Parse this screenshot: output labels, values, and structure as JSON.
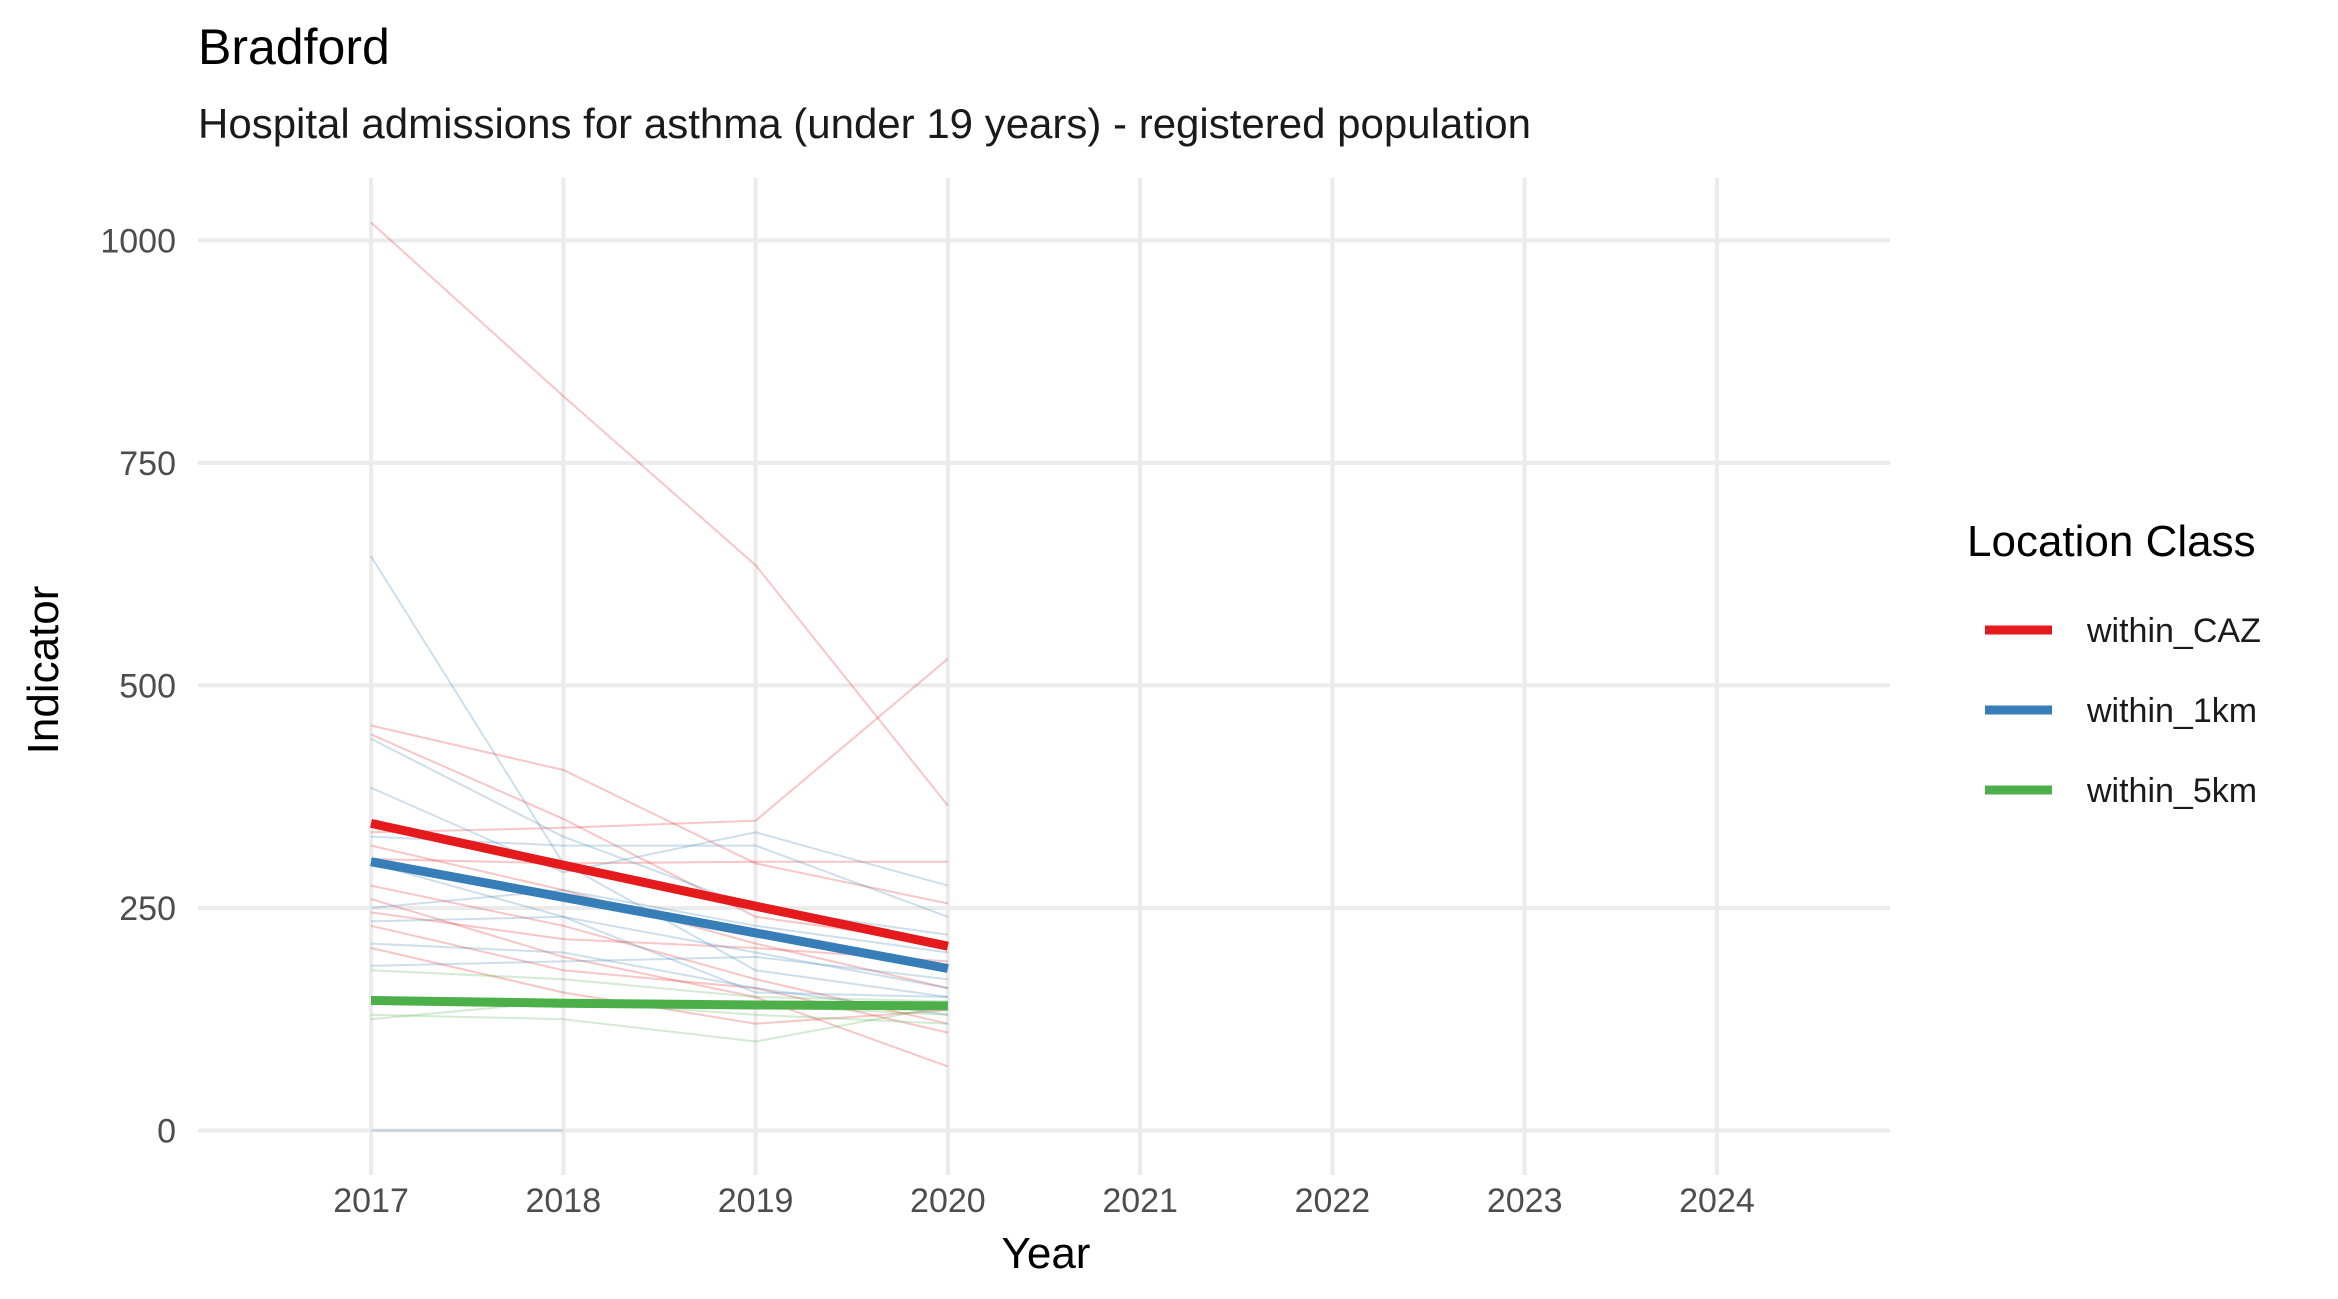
{
  "chart_data": {
    "type": "line",
    "title": "Bradford",
    "subtitle": "Hospital admissions for asthma (under 19 years) - registered  population",
    "xlabel": "Year",
    "ylabel": "Indicator",
    "x_ticks": [
      "2017",
      "2018",
      "2019",
      "2020",
      "2021",
      "2022",
      "2023",
      "2024"
    ],
    "y_ticks": [
      "0",
      "250",
      "500",
      "750",
      "1000"
    ],
    "xlim": [
      2016.1,
      2024.9
    ],
    "ylim": [
      -50,
      1070
    ],
    "grid": true,
    "legend": {
      "title": "Location Class",
      "position": "right"
    },
    "series": [
      {
        "name": "within_CAZ",
        "color": "#e41a1c",
        "x": [
          2017,
          2018,
          2019,
          2020
        ],
        "y": [
          345,
          298,
          252,
          207
        ]
      },
      {
        "name": "within_1km",
        "color": "#377eb8",
        "x": [
          2017,
          2018,
          2019,
          2020
        ],
        "y": [
          302,
          262,
          222,
          182
        ]
      },
      {
        "name": "within_5km",
        "color": "#4daf4a",
        "x": [
          2017,
          2018,
          2019,
          2020
        ],
        "y": [
          146,
          143,
          141,
          140
        ]
      }
    ],
    "background_lines": [
      {
        "group": "within_CAZ",
        "x": [
          2017,
          2018,
          2019,
          2020
        ],
        "y": [
          1020,
          825,
          635,
          365
        ]
      },
      {
        "group": "within_CAZ",
        "x": [
          2017,
          2018,
          2019,
          2020
        ],
        "y": [
          455,
          405,
          300,
          255
        ]
      },
      {
        "group": "within_CAZ",
        "x": [
          2017,
          2018,
          2019,
          2020
        ],
        "y": [
          445,
          350,
          240,
          210
        ]
      },
      {
        "group": "within_CAZ",
        "x": [
          2017,
          2018,
          2019,
          2020
        ],
        "y": [
          335,
          340,
          348,
          530
        ]
      },
      {
        "group": "within_CAZ",
        "x": [
          2017,
          2018,
          2019,
          2020
        ],
        "y": [
          305,
          300,
          302,
          302
        ]
      },
      {
        "group": "within_CAZ",
        "x": [
          2017,
          2018,
          2019,
          2020
        ],
        "y": [
          275,
          230,
          170,
          120
        ]
      },
      {
        "group": "within_CAZ",
        "x": [
          2017,
          2018,
          2019,
          2020
        ],
        "y": [
          260,
          195,
          150,
          72
        ]
      },
      {
        "group": "within_CAZ",
        "x": [
          2017,
          2018,
          2019,
          2020
        ],
        "y": [
          245,
          215,
          205,
          190
        ]
      },
      {
        "group": "within_CAZ",
        "x": [
          2017,
          2018,
          2019,
          2020
        ],
        "y": [
          230,
          180,
          160,
          110
        ]
      },
      {
        "group": "within_CAZ",
        "x": [
          2017,
          2018,
          2019,
          2020
        ],
        "y": [
          205,
          155,
          120,
          135
        ]
      },
      {
        "group": "within_CAZ",
        "x": [
          2017,
          2018,
          2019,
          2020
        ],
        "y": [
          320,
          270,
          210,
          160
        ]
      },
      {
        "group": "within_1km",
        "x": [
          2017,
          2018,
          2019,
          2020
        ],
        "y": [
          645,
          300,
          180,
          150
        ]
      },
      {
        "group": "within_1km",
        "x": [
          2017,
          2018,
          2019,
          2020
        ],
        "y": [
          440,
          330,
          250,
          220
        ]
      },
      {
        "group": "within_1km",
        "x": [
          2017,
          2018,
          2019,
          2020
        ],
        "y": [
          385,
          290,
          335,
          275
        ]
      },
      {
        "group": "within_1km",
        "x": [
          2017,
          2018,
          2019,
          2020
        ],
        "y": [
          330,
          320,
          320,
          240
        ]
      },
      {
        "group": "within_1km",
        "x": [
          2017,
          2018,
          2019,
          2020
        ],
        "y": [
          300,
          240,
          200,
          160
        ]
      },
      {
        "group": "within_1km",
        "x": [
          2017,
          2018,
          2019,
          2020
        ],
        "y": [
          250,
          270,
          230,
          200
        ]
      },
      {
        "group": "within_1km",
        "x": [
          2017,
          2018,
          2019,
          2020
        ],
        "y": [
          235,
          240,
          155,
          150
        ]
      },
      {
        "group": "within_1km",
        "x": [
          2017,
          2018,
          2019,
          2020
        ],
        "y": [
          210,
          200,
          160,
          130
        ]
      },
      {
        "group": "within_1km",
        "x": [
          2017,
          2018,
          2019,
          2020
        ],
        "y": [
          185,
          190,
          195,
          170
        ]
      },
      {
        "group": "within_1km",
        "x": [
          2017,
          2018,
          2019,
          2020
        ],
        "y": [
          0,
          0,
          null,
          null
        ]
      },
      {
        "group": "within_5km",
        "x": [
          2017,
          2018,
          2019,
          2020
        ],
        "y": [
          150,
          145,
          140,
          130
        ]
      },
      {
        "group": "within_5km",
        "x": [
          2017,
          2018,
          2019,
          2020
        ],
        "y": [
          130,
          125,
          100,
          140
        ]
      },
      {
        "group": "within_5km",
        "x": [
          2017,
          2018,
          2019,
          2020
        ],
        "y": [
          125,
          145,
          130,
          120
        ]
      },
      {
        "group": "within_5km",
        "x": [
          2017,
          2018,
          2019,
          2020
        ],
        "y": [
          180,
          170,
          150,
          145
        ]
      }
    ]
  }
}
